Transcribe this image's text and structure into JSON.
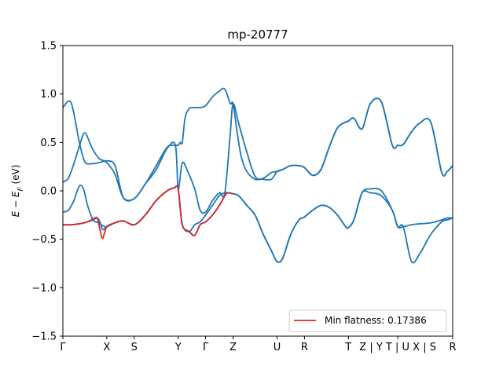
{
  "chart_data": {
    "type": "line",
    "title": "mp-20777",
    "ylabel": "E − E_F (eV)",
    "ylim": [
      -1.5,
      1.5
    ],
    "yticks": [
      -1.5,
      -1.0,
      -0.5,
      0.0,
      0.5,
      1.0,
      1.5
    ],
    "ytick_labels": [
      "−1.5",
      "−1.0",
      "−0.5",
      "0.0",
      "0.5",
      "1.0",
      "1.5"
    ],
    "xlim": [
      0,
      14.2
    ],
    "kpoints": [
      {
        "label": "Γ",
        "x": 0.0
      },
      {
        "label": "X",
        "x": 1.6
      },
      {
        "label": "S",
        "x": 2.6
      },
      {
        "label": "Y",
        "x": 4.2
      },
      {
        "label": "Γ",
        "x": 5.2
      },
      {
        "label": "Z",
        "x": 6.2
      },
      {
        "label": "U",
        "x": 7.8
      },
      {
        "label": "R",
        "x": 8.8
      },
      {
        "label": "T",
        "x": 10.4
      },
      {
        "label": "Z | Y T | U X | S",
        "x": 12.2
      },
      {
        "label": "R",
        "x": 14.2
      }
    ],
    "legend": {
      "label": "Min flatness: 0.17386",
      "color": "#d62728",
      "placement": "lower right"
    },
    "band_color": "#1f77b4",
    "highlight_color": "#d62728",
    "series": [
      {
        "x": [
          0.0,
          0.2,
          0.4,
          0.6,
          0.8,
          1.05,
          1.3,
          1.6,
          1.9,
          2.2,
          2.6,
          3.0,
          3.4,
          3.8,
          4.1,
          4.2,
          4.27,
          4.35,
          4.45,
          4.6,
          4.8,
          5.0,
          5.2,
          5.45,
          5.7,
          5.9,
          6.1,
          6.2,
          6.35,
          6.5,
          6.7,
          7.0,
          7.3,
          7.6,
          7.8,
          8.0,
          8.3,
          8.6,
          8.8,
          9.1,
          9.4,
          9.7,
          10.0,
          10.3,
          10.4,
          10.6,
          10.9,
          11.2,
          11.6,
          12.0,
          12.2,
          12.4,
          12.7,
          13.0,
          13.4,
          13.8,
          14.0,
          14.2
        ],
        "y": [
          0.09,
          0.13,
          0.28,
          0.46,
          0.6,
          0.45,
          0.34,
          0.29,
          0.17,
          -0.07,
          -0.08,
          0.07,
          0.26,
          0.45,
          0.47,
          0.47,
          0.5,
          0.5,
          0.75,
          0.85,
          0.86,
          0.86,
          0.88,
          0.97,
          1.03,
          1.05,
          0.9,
          0.9,
          0.6,
          0.35,
          0.2,
          0.12,
          0.13,
          0.19,
          0.2,
          0.22,
          0.26,
          0.26,
          0.24,
          0.16,
          0.22,
          0.45,
          0.65,
          0.71,
          0.72,
          0.75,
          0.64,
          0.9,
          0.92,
          0.47,
          0.47,
          0.48,
          0.61,
          0.7,
          0.71,
          0.19,
          0.2,
          0.26
        ]
      },
      {
        "x": [
          0.0,
          0.3,
          0.6,
          0.8,
          1.05,
          1.3,
          1.6,
          1.9,
          2.2,
          2.6,
          3.0,
          3.4,
          3.8,
          4.1,
          4.2,
          4.35,
          4.55,
          4.8,
          5.0,
          5.2,
          5.45,
          5.7,
          5.9,
          6.1,
          6.2,
          6.4,
          6.7,
          7.0,
          7.3,
          7.6,
          7.8,
          8.0,
          8.3,
          8.6,
          8.8,
          9.1,
          9.4,
          9.7,
          10.0,
          10.3,
          10.4,
          10.6,
          10.9,
          11.2,
          11.6,
          12.0,
          12.2,
          12.4,
          12.7,
          13.0,
          13.4,
          13.8,
          14.0,
          14.2
        ],
        "y": [
          0.86,
          0.91,
          0.5,
          0.3,
          0.28,
          0.29,
          0.31,
          0.26,
          -0.07,
          -0.08,
          0.07,
          0.22,
          0.44,
          0.47,
          0.02,
          0.29,
          0.2,
          0.02,
          -0.2,
          -0.22,
          -0.1,
          -0.02,
          -0.02,
          0.6,
          0.9,
          0.7,
          0.4,
          0.15,
          0.12,
          0.12,
          0.2,
          0.22,
          0.26,
          0.26,
          0.24,
          0.16,
          0.22,
          0.45,
          0.65,
          0.71,
          0.72,
          0.75,
          0.64,
          0.9,
          0.92,
          0.47,
          0.47,
          0.48,
          0.61,
          0.7,
          0.71,
          0.19,
          0.2,
          0.26
        ]
      },
      {
        "x": [
          0.0,
          0.2,
          0.4,
          0.6,
          0.75,
          0.9,
          1.1,
          1.3,
          1.45,
          1.6,
          1.9,
          2.2,
          2.6,
          3.0,
          3.4,
          3.8,
          4.05,
          4.2,
          4.35,
          4.6,
          4.8,
          5.0,
          5.2,
          5.45,
          5.7,
          5.9,
          6.0,
          6.2,
          6.4,
          6.7,
          7.0,
          7.3,
          7.6,
          7.8,
          8.0,
          8.3,
          8.6,
          8.8,
          9.1,
          9.4,
          9.7,
          10.0,
          10.3,
          10.4,
          10.6,
          10.9,
          11.2,
          11.6,
          12.0,
          12.2,
          12.4,
          12.7,
          13.0,
          13.4,
          13.8,
          14.0,
          14.2
        ],
        "y": [
          -0.22,
          -0.2,
          -0.1,
          0.05,
          0.02,
          -0.15,
          -0.3,
          -0.33,
          -0.36,
          -0.37,
          -0.33,
          -0.31,
          -0.35,
          -0.25,
          -0.1,
          0.0,
          0.03,
          0.02,
          -0.35,
          -0.42,
          -0.35,
          -0.32,
          -0.25,
          -0.15,
          -0.05,
          -0.02,
          -0.02,
          -0.03,
          -0.05,
          -0.15,
          -0.25,
          -0.45,
          -0.62,
          -0.73,
          -0.7,
          -0.45,
          -0.3,
          -0.27,
          -0.2,
          -0.15,
          -0.17,
          -0.25,
          -0.37,
          -0.38,
          -0.3,
          -0.02,
          -0.02,
          -0.05,
          -0.2,
          -0.37,
          -0.37,
          -0.35,
          -0.34,
          -0.33,
          -0.3,
          -0.28,
          -0.28
        ]
      },
      {
        "x": [
          0.0,
          0.3,
          0.6,
          0.9,
          1.1,
          1.25,
          1.35,
          1.45,
          1.6,
          1.9,
          2.2,
          2.6,
          3.0,
          3.4,
          3.8,
          4.05,
          4.2,
          4.35,
          4.6,
          4.8,
          5.0,
          5.2,
          5.45,
          5.7,
          5.9,
          6.0,
          6.2,
          6.4,
          6.7,
          7.0,
          7.3,
          7.6,
          7.8,
          8.0,
          8.3,
          8.6,
          8.8,
          9.1,
          9.4,
          9.7,
          10.0,
          10.3,
          10.4,
          10.6,
          10.9,
          11.2,
          11.6,
          12.0,
          12.2,
          12.4,
          12.7,
          13.0,
          13.4,
          13.8,
          14.0,
          14.2
        ],
        "y": [
          -0.35,
          -0.35,
          -0.34,
          -0.32,
          -0.3,
          -0.28,
          -0.32,
          -0.4,
          -0.37,
          -0.33,
          -0.31,
          -0.35,
          -0.25,
          -0.1,
          0.0,
          0.03,
          0.02,
          -0.35,
          -0.42,
          -0.46,
          -0.35,
          -0.32,
          -0.25,
          -0.15,
          -0.05,
          -0.02,
          -0.03,
          -0.05,
          -0.15,
          -0.25,
          -0.45,
          -0.62,
          -0.73,
          -0.7,
          -0.45,
          -0.3,
          -0.27,
          -0.2,
          -0.15,
          -0.17,
          -0.25,
          -0.37,
          -0.38,
          -0.3,
          -0.02,
          0.02,
          0.0,
          -0.2,
          -0.37,
          -0.37,
          -0.73,
          -0.65,
          -0.45,
          -0.32,
          -0.3,
          -0.28
        ]
      }
    ],
    "highlight": {
      "x": [
        0.0,
        0.3,
        0.6,
        0.9,
        1.1,
        1.25,
        1.35,
        1.45,
        1.6,
        1.9,
        2.2,
        2.6,
        3.0,
        3.4,
        3.8,
        4.05,
        4.2,
        4.35,
        4.6,
        4.8,
        5.0,
        5.2,
        5.45,
        5.7,
        5.9,
        6.0,
        6.2
      ],
      "y": [
        -0.35,
        -0.35,
        -0.34,
        -0.32,
        -0.29,
        -0.28,
        -0.4,
        -0.49,
        -0.37,
        -0.33,
        -0.31,
        -0.35,
        -0.25,
        -0.1,
        0.0,
        0.03,
        0.02,
        -0.35,
        -0.42,
        -0.46,
        -0.35,
        -0.32,
        -0.25,
        -0.15,
        -0.05,
        -0.02,
        -0.03
      ]
    }
  }
}
